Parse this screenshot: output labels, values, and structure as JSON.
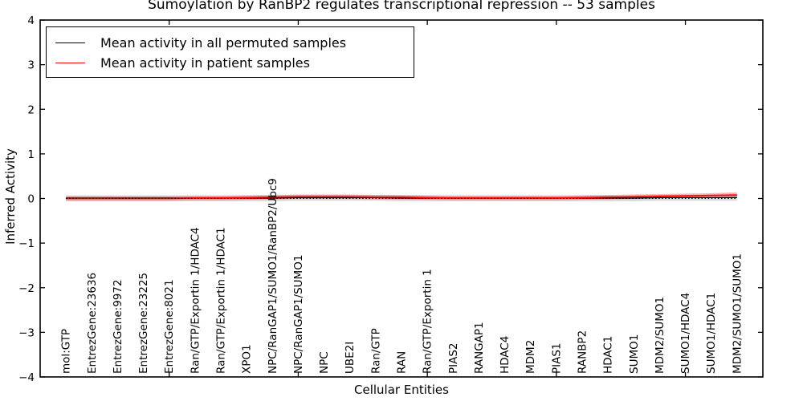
{
  "chart_data": {
    "type": "line",
    "title": "Sumoylation by RanBP2 regulates transcriptional repression -- 53 samples",
    "xlabel": "Cellular Entities",
    "ylabel": "Inferred Activity",
    "ylim": [
      -4,
      4
    ],
    "xlim": [
      0,
      28
    ],
    "yticks": [
      -4,
      -3,
      -2,
      -1,
      0,
      1,
      2,
      3,
      4
    ],
    "xtick_index_positions": [
      5,
      10,
      15,
      20,
      25
    ],
    "grid": false,
    "legend_position": "upper left",
    "categories": [
      "mol:GTP",
      "EntrezGene:23636",
      "EntrezGene:9972",
      "EntrezGene:23225",
      "EntrezGene:8021",
      "Ran/GTP/Exportin 1/HDAC4",
      "Ran/GTP/Exportin 1/HDAC1",
      "XPO1",
      "NPC/RanGAP1/SUMO1/RanBP2/Ubc9",
      "NPC/RanGAP1/SUMO1",
      "NPC",
      "UBE2I",
      "Ran/GTP",
      "RAN",
      "Ran/GTP/Exportin 1",
      "PIAS2",
      "RANGAP1",
      "HDAC4",
      "MDM2",
      "PIAS1",
      "RANBP2",
      "HDAC1",
      "SUMO1",
      "MDM2/SUMO1",
      "SUMO1/HDAC4",
      "SUMO1/HDAC1",
      "MDM2/SUMO1/SUMO1"
    ],
    "zero_line": {
      "y": 0,
      "style": "dotted",
      "color": "#000000"
    },
    "series": [
      {
        "name": "Mean activity in all permuted samples",
        "color": "#000000",
        "values": [
          0.01,
          0.01,
          0.01,
          0.01,
          0.01,
          0.01,
          0.01,
          0.01,
          0.01,
          0.02,
          0.02,
          0.02,
          0.02,
          0.01,
          0.01,
          0.01,
          0.01,
          0.01,
          0.01,
          0.01,
          0.01,
          0.01,
          0.01,
          0.02,
          0.02,
          0.02,
          0.02
        ],
        "band_low": [
          -0.06,
          -0.06,
          -0.06,
          -0.06,
          -0.06,
          -0.06,
          -0.06,
          -0.06,
          -0.06,
          -0.05,
          -0.05,
          -0.05,
          -0.05,
          -0.06,
          -0.06,
          -0.06,
          -0.06,
          -0.06,
          -0.06,
          -0.06,
          -0.06,
          -0.06,
          -0.06,
          -0.05,
          -0.05,
          -0.05,
          -0.05
        ],
        "band_high": [
          0.07,
          0.07,
          0.07,
          0.07,
          0.07,
          0.07,
          0.07,
          0.07,
          0.07,
          0.08,
          0.08,
          0.08,
          0.08,
          0.07,
          0.07,
          0.07,
          0.07,
          0.07,
          0.07,
          0.07,
          0.07,
          0.07,
          0.07,
          0.08,
          0.08,
          0.08,
          0.08
        ],
        "band_color": "#aaaaaa",
        "band_opacity": 0.45
      },
      {
        "name": "Mean activity in patient samples",
        "color": "#ff0000",
        "values": [
          0.0,
          0.0,
          0.0,
          0.0,
          0.0,
          0.01,
          0.01,
          0.02,
          0.03,
          0.04,
          0.04,
          0.04,
          0.03,
          0.03,
          0.02,
          0.01,
          0.01,
          0.01,
          0.01,
          0.01,
          0.02,
          0.03,
          0.04,
          0.05,
          0.06,
          0.07,
          0.08
        ],
        "band_low": [
          -0.05,
          -0.05,
          -0.05,
          -0.05,
          -0.05,
          -0.04,
          -0.04,
          -0.03,
          -0.02,
          -0.01,
          -0.01,
          -0.01,
          -0.02,
          -0.02,
          -0.03,
          -0.04,
          -0.04,
          -0.04,
          -0.04,
          -0.04,
          -0.03,
          -0.02,
          -0.01,
          0.0,
          0.01,
          0.02,
          0.02
        ],
        "band_high": [
          0.05,
          0.05,
          0.05,
          0.05,
          0.05,
          0.06,
          0.06,
          0.07,
          0.08,
          0.09,
          0.09,
          0.09,
          0.08,
          0.08,
          0.07,
          0.06,
          0.06,
          0.06,
          0.06,
          0.06,
          0.07,
          0.08,
          0.09,
          0.1,
          0.11,
          0.12,
          0.14
        ],
        "band_color": "#ff0000",
        "band_opacity": 0.28
      }
    ]
  }
}
